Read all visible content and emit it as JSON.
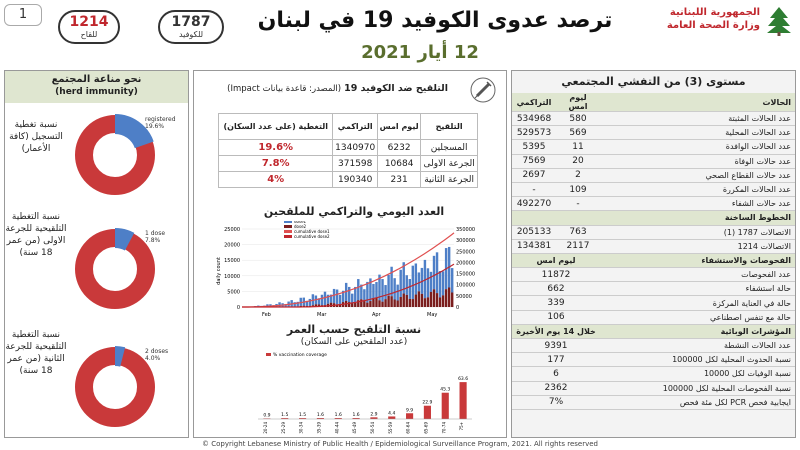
{
  "page_number": "1",
  "vaccinated_pill": {
    "value": "1214",
    "label": "للقاح"
  },
  "covid_pill": {
    "value": "1787",
    "label": "للكوفيد"
  },
  "title": "ترصد عدوى الكوفيد 19 في لبنان",
  "date": "12 أيار 2021",
  "ministry": {
    "line1": "الجمهورية اللبنانية",
    "line2": "وزارة الصحة العامة"
  },
  "left": {
    "header": "نحو مناعة المجتمع",
    "subheader": "(herd immunity)",
    "d1": {
      "label": "نسبة تغطية التسجيل (كافة الأعمار)",
      "legend1": "registered",
      "legend2": "19.6%",
      "value": 19.6
    },
    "d2": {
      "label": "نسبة التغطية التلقيحية للجرعة الاولى (من عمر 18 سنة)",
      "legend1": "1 dose",
      "legend2": "7.8%",
      "value": 7.8
    },
    "d3": {
      "label": "نسبة التغطية التلقيحية للجرعة الثانية (من عمر 18 سنة)",
      "legend1": "2 doses",
      "legend2": "4.0%",
      "value": 4.0
    },
    "colors": {
      "main": "#c9393a",
      "accent": "#4e7fc7"
    }
  },
  "mid": {
    "title": "التلقيح ضد الكوفيد 19",
    "source": "(المصدر: قاعدة بيانات Impact)",
    "headers": [
      "التلقيح",
      "ليوم امس",
      "التراكمي",
      "التغطية (على عدد السكان)"
    ],
    "rows": [
      [
        "المسجلين",
        "6232",
        "1340970",
        "19.6%"
      ],
      [
        "الجرعة الاولى",
        "10684",
        "371598",
        "7.8%"
      ],
      [
        "الجرعة الثانية",
        "231",
        "190340",
        "4%"
      ]
    ],
    "chart1_title": "العدد اليومي والتراكمي للملقحين",
    "chart2_title": "نسبة التلقيح حسب العمر",
    "chart2_sub": "(عدد الملقحين على السكان)"
  },
  "chart_data": [
    {
      "type": "bar",
      "ylabel": "daily count",
      "y2label": "cumulative",
      "legend": [
        "dose1",
        "dose2",
        "cumulative dose1",
        "cumulative dose2"
      ],
      "ylim": [
        0,
        25000
      ],
      "y2lim": [
        0,
        350000
      ],
      "yticks": [
        "25000",
        "20000",
        "15000",
        "10000",
        "5000",
        "0"
      ],
      "y2ticks": [
        "350000",
        "300000",
        "250000",
        "200000",
        "150000",
        "100000",
        "50000",
        "0"
      ],
      "xlabels": [
        "Feb",
        "Mar",
        "Apr",
        "May"
      ],
      "colors": [
        "#4e7fc7",
        "#7a1e1e",
        "#e05050",
        "#c0272d"
      ]
    },
    {
      "type": "bar",
      "legend": "% vaccination coverage",
      "categories": [
        "20-24",
        "25-29",
        "30-34",
        "35-39",
        "40-44",
        "45-49",
        "50-54",
        "55-59",
        "60-64",
        "65-69",
        "70-74",
        "75+"
      ],
      "values": [
        0.9,
        1.5,
        1.5,
        1.6,
        1.6,
        1.6,
        2.9,
        4.4,
        9.9,
        22.9,
        45.3,
        63.6
      ],
      "ylim": [
        0,
        100
      ],
      "color": "#c9393a"
    }
  ],
  "right": {
    "title": "مستوى (3) من التفشي المجتمعي",
    "col_headers": {
      "label": "الحالات",
      "yesterday": "ليوم امس",
      "cumulative": "التراكمي"
    },
    "cases": [
      {
        "label": "عدد الحالات المثبتة",
        "y": "580",
        "c": "534968"
      },
      {
        "label": "عدد الحالات المحلية",
        "y": "569",
        "c": "529573"
      },
      {
        "label": "عدد الحالات الوافدة",
        "y": "11",
        "c": "5395"
      },
      {
        "label": "عدد حالات الوفاة",
        "y": "20",
        "c": "7569"
      },
      {
        "label": "عدد حالات القطاع الصحي",
        "y": "2",
        "c": "2697"
      },
      {
        "label": "عدد الحالات المكررة",
        "y": "109",
        "c": "-"
      },
      {
        "label": "عدد حالات الشفاء",
        "y": "-",
        "c": "492270"
      }
    ],
    "hotlines_header": "الخطوط الساخنة",
    "hotlines": [
      {
        "label": "الاتصالات 1787 (1)",
        "y": "763",
        "c": "205133"
      },
      {
        "label": "الاتصالات 1214",
        "y": "2117",
        "c": "134381"
      }
    ],
    "tests_header": "الفحوصات والاستشفاء",
    "tests_col": "ليوم امس",
    "tests": [
      {
        "label": "عدد الفحوصات",
        "v": "11872"
      },
      {
        "label": "حالة استشفاء",
        "v": "662"
      },
      {
        "label": "حالة في العناية المركزة",
        "v": "339"
      },
      {
        "label": "حالة مع تنفس اصطناعي",
        "v": "106"
      }
    ],
    "indicators_header": "المؤشرات الوبائية",
    "indicators_col": "خلال 14 يوم الأخيرة",
    "indicators": [
      {
        "label": "عدد الحالات النشطة",
        "v": "9391"
      },
      {
        "label": "نسبة الحدوث المحلية لكل 100000",
        "v": "177"
      },
      {
        "label": "نسبة الوفيات لكل 10000",
        "v": "6"
      },
      {
        "label": "نسبة الفحوصات المحلية لكل 100000",
        "v": "2362"
      },
      {
        "label": "ايجابية فحص PCR لكل مئة فحص",
        "v": "7%"
      }
    ]
  },
  "footer": "© Copyright Lebanese Ministry of Public Health / Epidemiological Surveillance Program, 2021. All rights reserved"
}
